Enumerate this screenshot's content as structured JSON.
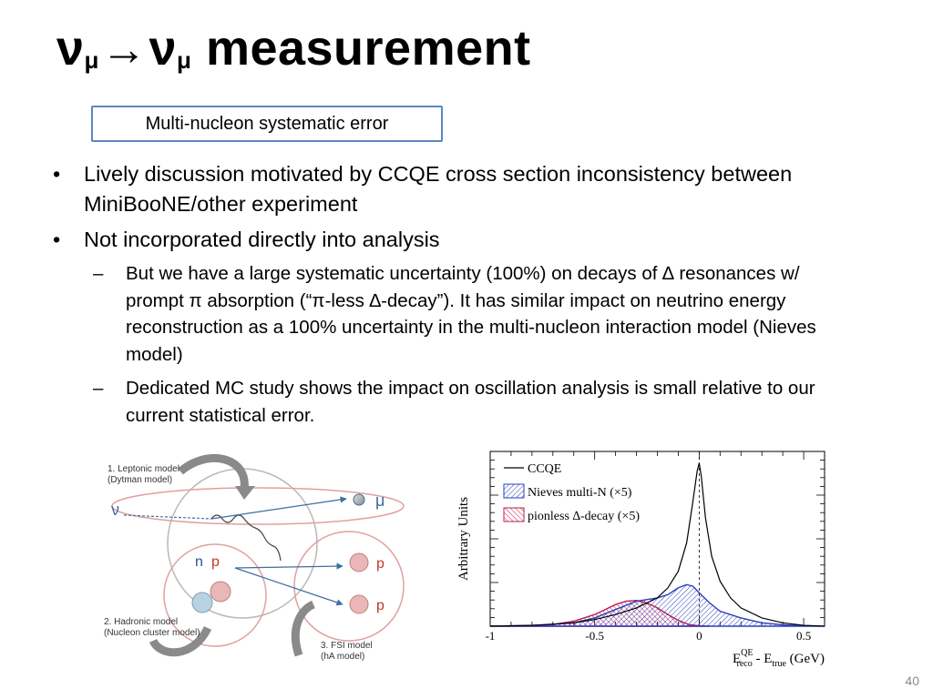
{
  "title": {
    "nu1": "ν",
    "sub1": "μ",
    "arrow": "→",
    "nu2": "ν",
    "sub2": "μ",
    "rest": " measurement"
  },
  "subtitle": "Multi-nucleon systematic error",
  "bullets": [
    {
      "marker": "•",
      "text": "Lively discussion motivated by CCQE cross section inconsistency between MiniBooNE/other experiment"
    },
    {
      "marker": "•",
      "text": "Not incorporated directly into analysis",
      "sub": [
        {
          "marker": "–",
          "text": "But we have a large systematic uncertainty (100%) on decays of ∆ resonances w/ prompt π absorption (“π-less ∆-decay”). It has similar impact on neutrino energy reconstruction as a 100% uncertainty in the multi-nucleon interaction model (Nieves model)"
        },
        {
          "marker": "–",
          "text": "Dedicated MC study shows the impact on oscillation analysis is small relative to our current statistical error."
        }
      ]
    }
  ],
  "diagram": {
    "label1": "1. Leptonic model",
    "label1b": "(Dytman model)",
    "label2": "2. Hadronic model",
    "label2b": "(Nucleon cluster model)",
    "label3": "3. FSI model",
    "label3b": "(hA model)",
    "nu": "ν",
    "mu": "μ",
    "n": "n",
    "p": "p",
    "p_out1": "p",
    "p_out2": "p",
    "colors": {
      "blue": "#3a6fb0",
      "red": "#c0392b",
      "gray": "#888888"
    }
  },
  "chart_data": {
    "type": "area",
    "xlabel_main": "E",
    "xlabel_sup": "QE",
    "xlabel_sub": "reco",
    "xlabel_mid": " - E",
    "xlabel_sub2": "true",
    "xlabel_end": " (GeV)",
    "ylabel": "Arbitrary Units",
    "xlim": [
      -1,
      0.6
    ],
    "ylim": [
      0,
      1.05
    ],
    "x_ticks": [
      -1,
      -0.5,
      0,
      0.5
    ],
    "x_tick_labels": [
      "-1",
      "-0.5",
      "0",
      "0.5"
    ],
    "y_axis_numbers": "none",
    "reference_line": 0,
    "legend": [
      {
        "name": "CCQE",
        "style": "line",
        "color": "#000000"
      },
      {
        "name": "Nieves multi-N (×5)",
        "style": "hatch",
        "color": "#2a3fc0"
      },
      {
        "name": "pionless ∆-decay (×5)",
        "style": "hatch",
        "color": "#c01a4a"
      }
    ],
    "legend_placement": "top-left",
    "series": [
      {
        "name": "CCQE",
        "color": "#000000",
        "x": [
          -1,
          -0.8,
          -0.6,
          -0.5,
          -0.4,
          -0.3,
          -0.2,
          -0.15,
          -0.1,
          -0.06,
          -0.03,
          -0.01,
          0,
          0.01,
          0.03,
          0.06,
          0.1,
          0.15,
          0.2,
          0.3,
          0.4,
          0.5,
          0.6
        ],
        "y": [
          0,
          0.005,
          0.02,
          0.04,
          0.07,
          0.11,
          0.17,
          0.23,
          0.33,
          0.5,
          0.75,
          0.93,
          0.98,
          0.9,
          0.65,
          0.42,
          0.27,
          0.17,
          0.11,
          0.05,
          0.02,
          0.005,
          0
        ]
      },
      {
        "name": "Nieves multi-N (×5)",
        "color": "#2a3fc0",
        "x": [
          -1,
          -0.8,
          -0.6,
          -0.5,
          -0.4,
          -0.3,
          -0.2,
          -0.15,
          -0.1,
          -0.06,
          -0.03,
          0,
          0.05,
          0.1,
          0.2,
          0.3,
          0.4,
          0.5,
          0.6
        ],
        "y": [
          0,
          0.002,
          0.02,
          0.05,
          0.1,
          0.15,
          0.17,
          0.19,
          0.23,
          0.25,
          0.24,
          0.2,
          0.14,
          0.09,
          0.05,
          0.02,
          0.008,
          0.002,
          0
        ]
      },
      {
        "name": "pionless ∆-decay (×5)",
        "color": "#c01a4a",
        "x": [
          -1,
          -0.8,
          -0.7,
          -0.6,
          -0.5,
          -0.45,
          -0.4,
          -0.35,
          -0.3,
          -0.25,
          -0.2,
          -0.15,
          -0.1,
          -0.05,
          0,
          0.05
        ],
        "y": [
          0,
          0.005,
          0.01,
          0.03,
          0.07,
          0.1,
          0.13,
          0.15,
          0.155,
          0.14,
          0.11,
          0.07,
          0.035,
          0.01,
          0.002,
          0
        ]
      }
    ]
  },
  "page_number": "40"
}
